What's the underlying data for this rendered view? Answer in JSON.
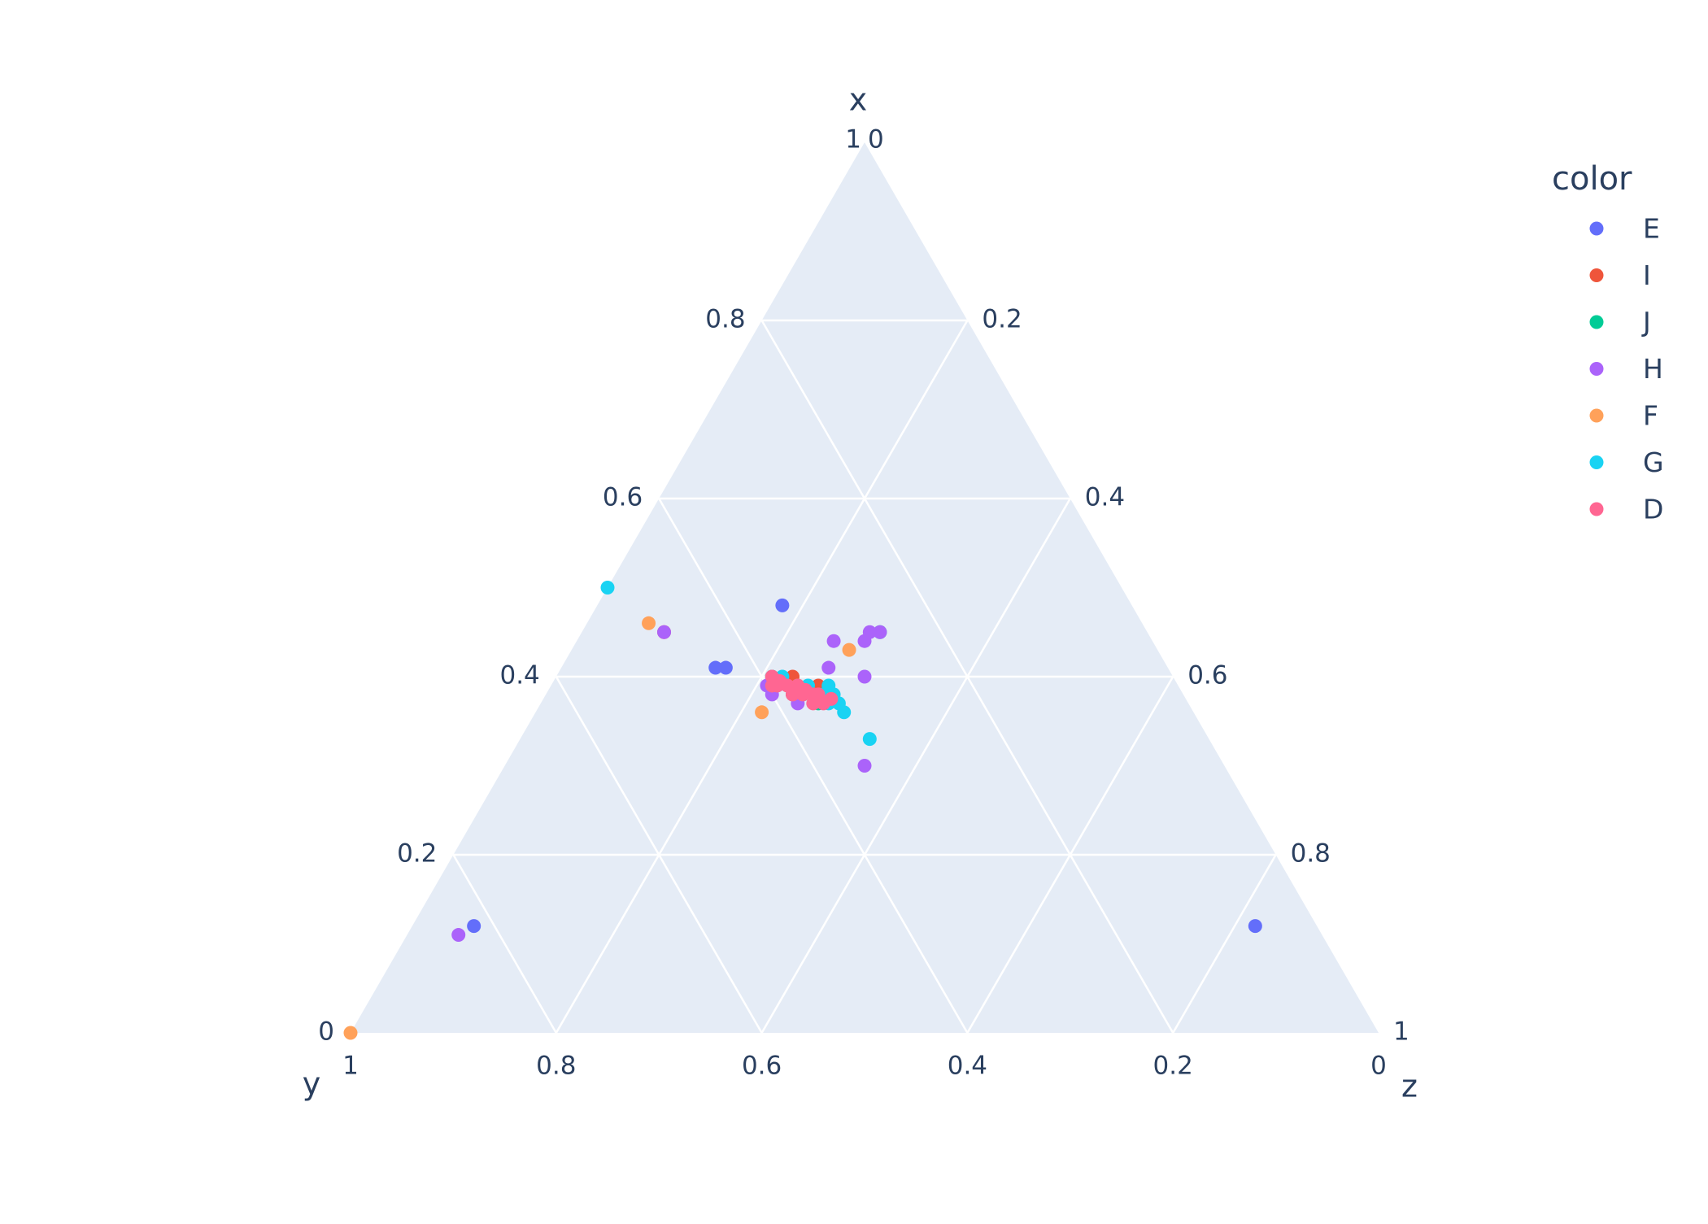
{
  "chart_data": {
    "type": "scatter",
    "subtype": "ternary",
    "axes": {
      "x": {
        "title": "x",
        "range": [
          0,
          1
        ],
        "ticks": [
          "0.2",
          "0.4",
          "0.6",
          "0.8",
          "1"
        ]
      },
      "y": {
        "title": "y",
        "range": [
          0,
          1
        ],
        "ticks": [
          "1",
          "0.8",
          "0.6",
          "0.4",
          "0.2",
          "0"
        ]
      },
      "z": {
        "title": "z",
        "range": [
          0,
          1
        ],
        "ticks": [
          "0",
          "0.2",
          "0.4",
          "0.6",
          "0.8",
          "1"
        ]
      }
    },
    "x_ticks_left": [
      "0",
      "0.2",
      "0.4",
      "0.6",
      "0.8",
      "1"
    ],
    "z_ticks_right": [
      "0",
      "0.2",
      "0.4",
      "0.6",
      "0.8",
      "1"
    ],
    "y_ticks_bottom": [
      "1",
      "0.8",
      "0.6",
      "0.4",
      "0.2",
      "0"
    ],
    "grid": true,
    "legend": {
      "title": "color",
      "position": "right"
    },
    "colors": {
      "background": "#e5ecf6",
      "grid": "#ffffff",
      "text": "#2a3f5f"
    },
    "series": [
      {
        "name": "E",
        "color": "#636efa",
        "points": [
          [
            0.48,
            0.34,
            0.18
          ],
          [
            0.41,
            0.43,
            0.16
          ],
          [
            0.41,
            0.44,
            0.15
          ],
          [
            0.39,
            0.39,
            0.22
          ],
          [
            0.38,
            0.38,
            0.24
          ],
          [
            0.12,
            0.82,
            0.06
          ],
          [
            0.12,
            0.06,
            0.82
          ]
        ]
      },
      {
        "name": "I",
        "color": "#ef553b",
        "points": [
          [
            0.45,
            0.47,
            0.08
          ],
          [
            0.4,
            0.37,
            0.23
          ],
          [
            0.39,
            0.38,
            0.23
          ],
          [
            0.38,
            0.36,
            0.26
          ],
          [
            0.39,
            0.35,
            0.26
          ],
          [
            0.38,
            0.38,
            0.24
          ]
        ]
      },
      {
        "name": "J",
        "color": "#00cc96",
        "points": [
          [
            0.45,
            0.26,
            0.29
          ],
          [
            0.4,
            0.39,
            0.21
          ],
          [
            0.38,
            0.37,
            0.25
          ],
          [
            0.37,
            0.36,
            0.27
          ],
          [
            0.39,
            0.37,
            0.24
          ],
          [
            0.38,
            0.35,
            0.27
          ]
        ]
      },
      {
        "name": "H",
        "color": "#ab63fa",
        "points": [
          [
            0.45,
            0.47,
            0.08
          ],
          [
            0.45,
            0.26,
            0.29
          ],
          [
            0.45,
            0.27,
            0.28
          ],
          [
            0.44,
            0.31,
            0.25
          ],
          [
            0.44,
            0.28,
            0.28
          ],
          [
            0.41,
            0.33,
            0.26
          ],
          [
            0.4,
            0.3,
            0.3
          ],
          [
            0.39,
            0.4,
            0.21
          ],
          [
            0.38,
            0.4,
            0.22
          ],
          [
            0.37,
            0.38,
            0.25
          ],
          [
            0.3,
            0.35,
            0.35
          ],
          [
            0.11,
            0.84,
            0.05
          ]
        ]
      },
      {
        "name": "F",
        "color": "#ffa15a",
        "points": [
          [
            0.46,
            0.48,
            0.06
          ],
          [
            0.43,
            0.3,
            0.27
          ],
          [
            0.36,
            0.42,
            0.22
          ],
          [
            0.39,
            0.37,
            0.24
          ],
          [
            0.38,
            0.36,
            0.26
          ],
          [
            0.0,
            1.0,
            0.0
          ]
        ]
      },
      {
        "name": "G",
        "color": "#19d3f3",
        "points": [
          [
            0.5,
            0.5,
            0.0
          ],
          [
            0.33,
            0.33,
            0.34
          ],
          [
            0.36,
            0.34,
            0.3
          ],
          [
            0.37,
            0.34,
            0.29
          ],
          [
            0.38,
            0.35,
            0.27
          ],
          [
            0.39,
            0.36,
            0.25
          ],
          [
            0.38,
            0.34,
            0.28
          ],
          [
            0.37,
            0.35,
            0.28
          ],
          [
            0.39,
            0.34,
            0.27
          ],
          [
            0.4,
            0.38,
            0.22
          ]
        ]
      },
      {
        "name": "D",
        "color": "#ff6692",
        "points": [
          [
            0.4,
            0.39,
            0.21
          ],
          [
            0.39,
            0.39,
            0.22
          ],
          [
            0.39,
            0.38,
            0.23
          ],
          [
            0.385,
            0.375,
            0.24
          ],
          [
            0.38,
            0.37,
            0.25
          ],
          [
            0.38,
            0.36,
            0.26
          ],
          [
            0.375,
            0.36,
            0.265
          ],
          [
            0.37,
            0.355,
            0.275
          ],
          [
            0.39,
            0.37,
            0.24
          ],
          [
            0.38,
            0.38,
            0.24
          ],
          [
            0.395,
            0.385,
            0.22
          ],
          [
            0.385,
            0.365,
            0.25
          ],
          [
            0.375,
            0.345,
            0.28
          ],
          [
            0.39,
            0.395,
            0.215
          ],
          [
            0.38,
            0.355,
            0.265
          ],
          [
            0.37,
            0.365,
            0.265
          ]
        ]
      }
    ]
  }
}
